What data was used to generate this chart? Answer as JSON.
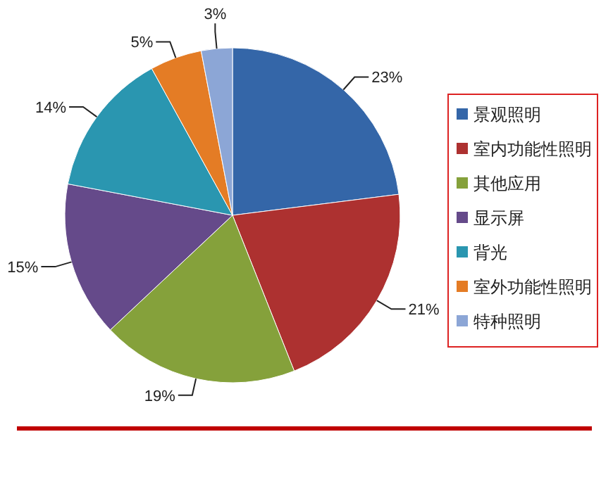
{
  "chart_data": {
    "type": "pie",
    "categories": [
      "景观照明",
      "室内功能性照明",
      "其他应用",
      "显示屏",
      "背光",
      "室外功能性照明",
      "特种照明"
    ],
    "values": [
      23,
      21,
      19,
      15,
      14,
      5,
      3
    ],
    "colors": [
      "#3466a8",
      "#ad3130",
      "#85a13b",
      "#654a8a",
      "#2a96b0",
      "#e47c25",
      "#8ca6d6"
    ],
    "value_labels": [
      "23%",
      "21%",
      "19%",
      "15%",
      "14%",
      "5%",
      "3%"
    ],
    "legend": "right"
  }
}
